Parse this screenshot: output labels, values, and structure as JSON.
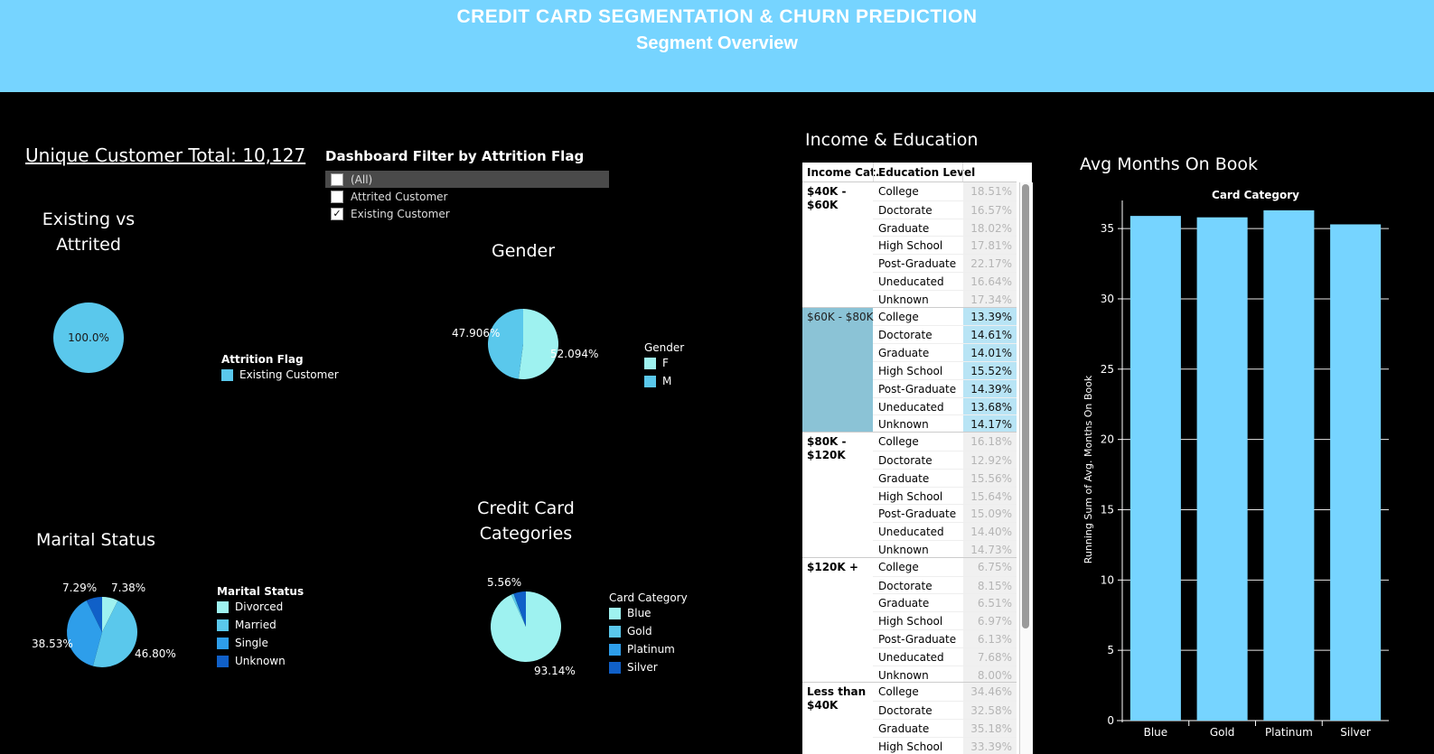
{
  "header": {
    "title": "CREDIT CARD SEGMENTATION & CHURN PREDICTION",
    "subtitle": "Segment Overview"
  },
  "customer_total": "Unique Customer Total: 10,127",
  "filter": {
    "title": "Dashboard Filter by Attrition Flag",
    "options": [
      {
        "label": "(All)",
        "checked": false
      },
      {
        "label": "Attrited Customer",
        "checked": false
      },
      {
        "label": "Existing Customer",
        "checked": true
      }
    ]
  },
  "existing_vs_attrited": {
    "title": "Existing vs Attrited",
    "legend_title": "Attrition Flag",
    "legend": [
      {
        "label": "Existing Customer",
        "color": "#5ac8ec"
      }
    ]
  },
  "gender": {
    "title": "Gender",
    "legend_title": "Gender",
    "legend": [
      {
        "label": "F",
        "color": "#9ef2f0"
      },
      {
        "label": "M",
        "color": "#5ac8ec"
      }
    ]
  },
  "marital": {
    "title": "Marital Status",
    "legend_title": "Marital Status",
    "legend": [
      {
        "label": "Divorced",
        "color": "#9ef2f0"
      },
      {
        "label": "Married",
        "color": "#5ac8ec"
      },
      {
        "label": "Single",
        "color": "#2e9eea"
      },
      {
        "label": "Unknown",
        "color": "#1060c8"
      }
    ]
  },
  "card": {
    "title_line1": "Credit Card",
    "title_line2": "Categories",
    "legend_title": "Card Category",
    "legend": [
      {
        "label": "Blue",
        "color": "#9ef2f0"
      },
      {
        "label": "Gold",
        "color": "#5ac8ec"
      },
      {
        "label": "Platinum",
        "color": "#2e9eea"
      },
      {
        "label": "Silver",
        "color": "#1060c8"
      }
    ]
  },
  "income_education": {
    "title": "Income & Education",
    "col1": "Income Cat..",
    "col2": "Education Level",
    "groups": [
      {
        "label": "$40K - $60K",
        "highlight": false,
        "rows": [
          {
            "edu": "College",
            "val": "18.51%"
          },
          {
            "edu": "Doctorate",
            "val": "16.57%"
          },
          {
            "edu": "Graduate",
            "val": "18.02%"
          },
          {
            "edu": "High School",
            "val": "17.81%"
          },
          {
            "edu": "Post-Graduate",
            "val": "22.17%"
          },
          {
            "edu": "Uneducated",
            "val": "16.64%"
          },
          {
            "edu": "Unknown",
            "val": "17.34%"
          }
        ]
      },
      {
        "label": "$60K - $80K",
        "highlight": true,
        "rows": [
          {
            "edu": "College",
            "val": "13.39%"
          },
          {
            "edu": "Doctorate",
            "val": "14.61%"
          },
          {
            "edu": "Graduate",
            "val": "14.01%"
          },
          {
            "edu": "High School",
            "val": "15.52%"
          },
          {
            "edu": "Post-Graduate",
            "val": "14.39%"
          },
          {
            "edu": "Uneducated",
            "val": "13.68%"
          },
          {
            "edu": "Unknown",
            "val": "14.17%"
          }
        ]
      },
      {
        "label": "$80K - $120K",
        "highlight": false,
        "rows": [
          {
            "edu": "College",
            "val": "16.18%"
          },
          {
            "edu": "Doctorate",
            "val": "12.92%"
          },
          {
            "edu": "Graduate",
            "val": "15.56%"
          },
          {
            "edu": "High School",
            "val": "15.64%"
          },
          {
            "edu": "Post-Graduate",
            "val": "15.09%"
          },
          {
            "edu": "Uneducated",
            "val": "14.40%"
          },
          {
            "edu": "Unknown",
            "val": "14.73%"
          }
        ]
      },
      {
        "label": "$120K +",
        "highlight": false,
        "rows": [
          {
            "edu": "College",
            "val": "6.75%"
          },
          {
            "edu": "Doctorate",
            "val": "8.15%"
          },
          {
            "edu": "Graduate",
            "val": "6.51%"
          },
          {
            "edu": "High School",
            "val": "6.97%"
          },
          {
            "edu": "Post-Graduate",
            "val": "6.13%"
          },
          {
            "edu": "Uneducated",
            "val": "7.68%"
          },
          {
            "edu": "Unknown",
            "val": "8.00%"
          }
        ]
      },
      {
        "label": "Less than $40K",
        "highlight": false,
        "rows": [
          {
            "edu": "College",
            "val": "34.46%"
          },
          {
            "edu": "Doctorate",
            "val": "32.58%"
          },
          {
            "edu": "Graduate",
            "val": "35.18%"
          },
          {
            "edu": "High School",
            "val": "33.39%"
          }
        ]
      }
    ]
  },
  "avg_months": {
    "title": "Avg Months On Book"
  },
  "chart_data": [
    {
      "type": "pie",
      "title": "Existing vs Attrited",
      "slices": [
        {
          "label": "Existing Customer",
          "value": 100.0,
          "text": "100.0%",
          "color": "#5ac8ec"
        }
      ]
    },
    {
      "type": "pie",
      "title": "Gender",
      "slices": [
        {
          "label": "F",
          "value": 52.094,
          "text": "52.094%",
          "color": "#9ef2f0"
        },
        {
          "label": "M",
          "value": 47.906,
          "text": "47.906%",
          "color": "#5ac8ec"
        }
      ]
    },
    {
      "type": "pie",
      "title": "Marital Status",
      "slices": [
        {
          "label": "Divorced",
          "value": 7.38,
          "text": "7.38%",
          "color": "#9ef2f0"
        },
        {
          "label": "Married",
          "value": 46.8,
          "text": "46.80%",
          "color": "#5ac8ec"
        },
        {
          "label": "Single",
          "value": 38.53,
          "text": "38.53%",
          "color": "#2e9eea"
        },
        {
          "label": "Unknown",
          "value": 7.29,
          "text": "7.29%",
          "color": "#1060c8"
        }
      ]
    },
    {
      "type": "pie",
      "title": "Credit Card Categories",
      "slices": [
        {
          "label": "Blue",
          "value": 93.14,
          "text": "93.14%",
          "color": "#9ef2f0"
        },
        {
          "label": "Gold",
          "value": 1.1,
          "text": "",
          "color": "#5ac8ec"
        },
        {
          "label": "Platinum",
          "value": 0.2,
          "text": "",
          "color": "#2e9eea"
        },
        {
          "label": "Silver",
          "value": 5.56,
          "text": "5.56%",
          "color": "#1060c8"
        }
      ]
    },
    {
      "type": "bar",
      "title": "Avg Months On Book",
      "subtitle": "Card Category",
      "categories": [
        "Blue",
        "Gold",
        "Platinum",
        "Silver"
      ],
      "values": [
        35.9,
        35.8,
        36.3,
        35.3
      ],
      "ylabel": "Running Sum of Avg. Months On Book",
      "ylim": [
        0,
        37
      ],
      "yticks": [
        0,
        5,
        10,
        15,
        20,
        25,
        30,
        35
      ],
      "color": "#76d4ff"
    }
  ]
}
